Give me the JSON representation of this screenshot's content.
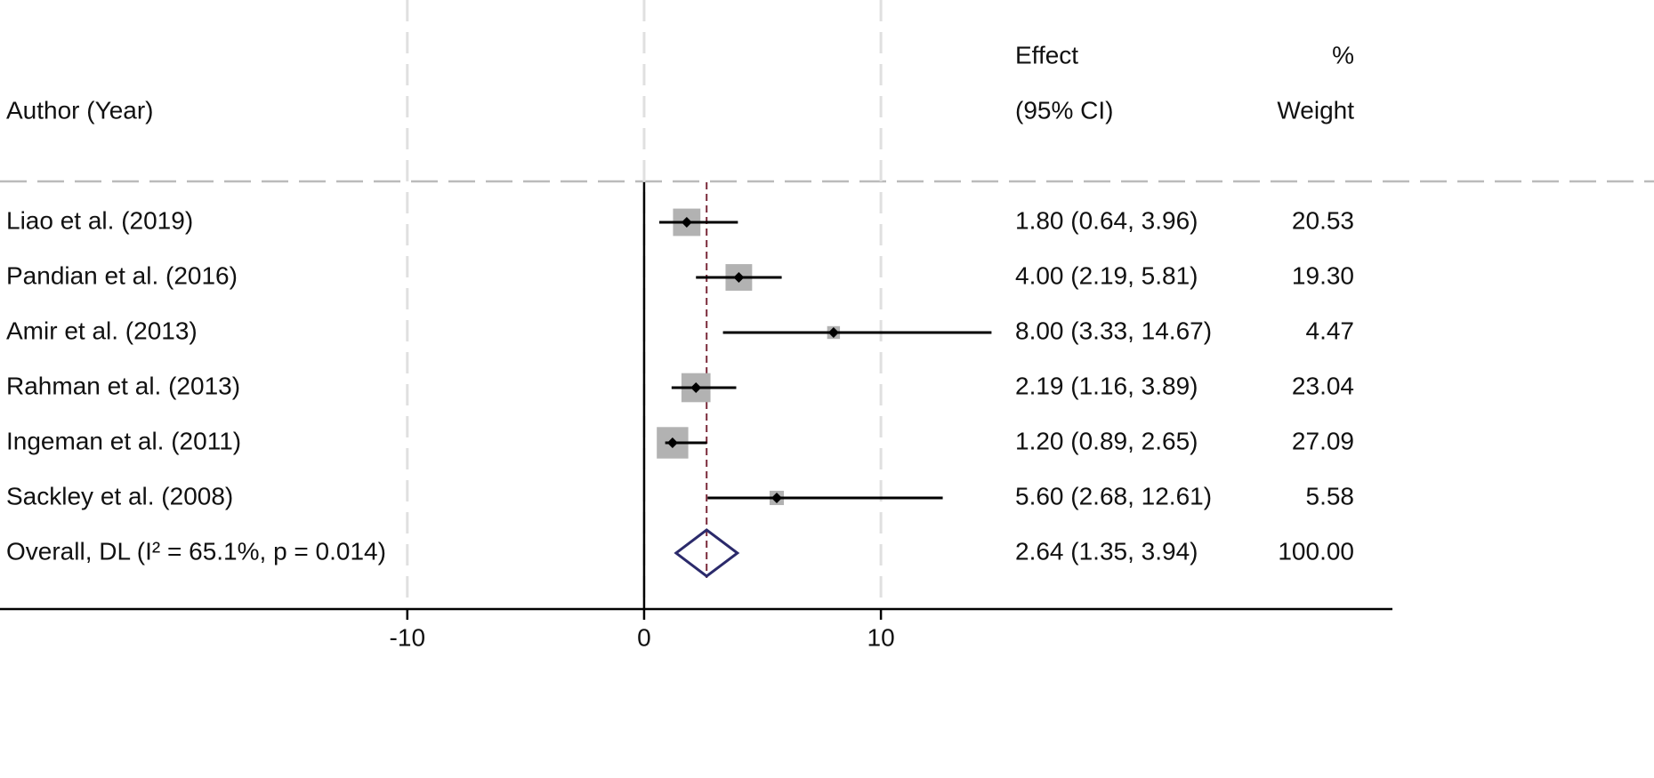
{
  "chart_data": {
    "type": "forest",
    "headers": {
      "study": "Author (Year)",
      "effect": [
        "Effect",
        "(95% CI)"
      ],
      "weight": [
        "%",
        "Weight"
      ]
    },
    "studies": [
      {
        "name": "Liao et al.  (2019)",
        "effect": 1.8,
        "lower": 0.64,
        "upper": 3.96,
        "effect_label": "1.80 (0.64, 3.96)",
        "weight": 20.53,
        "weight_label": "20.53"
      },
      {
        "name": "Pandian et al.  (2016)",
        "effect": 4.0,
        "lower": 2.19,
        "upper": 5.81,
        "effect_label": "4.00 (2.19, 5.81)",
        "weight": 19.3,
        "weight_label": "19.30"
      },
      {
        "name": "Amir et al.  (2013)",
        "effect": 8.0,
        "lower": 3.33,
        "upper": 14.67,
        "effect_label": "8.00 (3.33, 14.67)",
        "weight": 4.47,
        "weight_label": "4.47"
      },
      {
        "name": "Rahman et al.  (2013)",
        "effect": 2.19,
        "lower": 1.16,
        "upper": 3.89,
        "effect_label": "2.19 (1.16, 3.89)",
        "weight": 23.04,
        "weight_label": "23.04"
      },
      {
        "name": "Ingeman et al.  (2011)",
        "effect": 1.2,
        "lower": 0.89,
        "upper": 2.65,
        "effect_label": "1.20 (0.89, 2.65)",
        "weight": 27.09,
        "weight_label": "27.09"
      },
      {
        "name": "Sackley et al.  (2008)",
        "effect": 5.6,
        "lower": 2.68,
        "upper": 12.61,
        "effect_label": "5.60 (2.68, 12.61)",
        "weight": 5.58,
        "weight_label": "5.58"
      }
    ],
    "overall": {
      "name": "Overall, DL (I² = 65.1%, p = 0.014)",
      "effect": 2.64,
      "lower": 1.35,
      "upper": 3.94,
      "effect_label": "2.64 (1.35, 3.94)",
      "weight": 100,
      "weight_label": "100.00"
    },
    "reference_line": 0,
    "xlim": [
      -27.2,
      31.6
    ],
    "xticks": [
      -10,
      0,
      10
    ],
    "grid": true,
    "colors": {
      "box": "#b2b2b2",
      "ci": "#000000",
      "diamond": "#2b2a6b",
      "overall_line": "#7a2a3a",
      "grid": "#e0e0e0"
    }
  }
}
